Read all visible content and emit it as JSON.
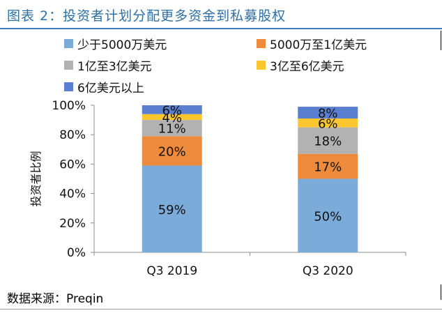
{
  "figure_title": "图表 2：投资者计划分配更多资金到私募股权",
  "source_text": "数据来源：Preqin",
  "chart_data": {
    "type": "bar",
    "stacked": true,
    "categories": [
      "Q3 2019",
      "Q3 2020"
    ],
    "ylabel": "投资者比例",
    "xlabel": "",
    "ylim": [
      0,
      100
    ],
    "yticks": [
      "0%",
      "20%",
      "40%",
      "60%",
      "80%",
      "100%"
    ],
    "legend_position": "top",
    "series": [
      {
        "name": "少于5000万美元",
        "color": "#7aabd9",
        "values": [
          59,
          50
        ],
        "labels": [
          "59%",
          "50%"
        ]
      },
      {
        "name": "5000万至1亿美元",
        "color": "#ee8a3c",
        "values": [
          20,
          17
        ],
        "labels": [
          "20%",
          "17%"
        ]
      },
      {
        "name": "1亿至3亿美元",
        "color": "#b2b2b2",
        "values": [
          11,
          18
        ],
        "labels": [
          "11%",
          "18%"
        ]
      },
      {
        "name": "3亿至6亿美元",
        "color": "#fcc62f",
        "values": [
          4,
          6
        ],
        "labels": [
          "4%",
          "6%"
        ]
      },
      {
        "name": "6亿美元以上",
        "color": "#5a7fd0",
        "values": [
          6,
          8
        ],
        "labels": [
          "6%",
          "8%"
        ]
      }
    ]
  }
}
